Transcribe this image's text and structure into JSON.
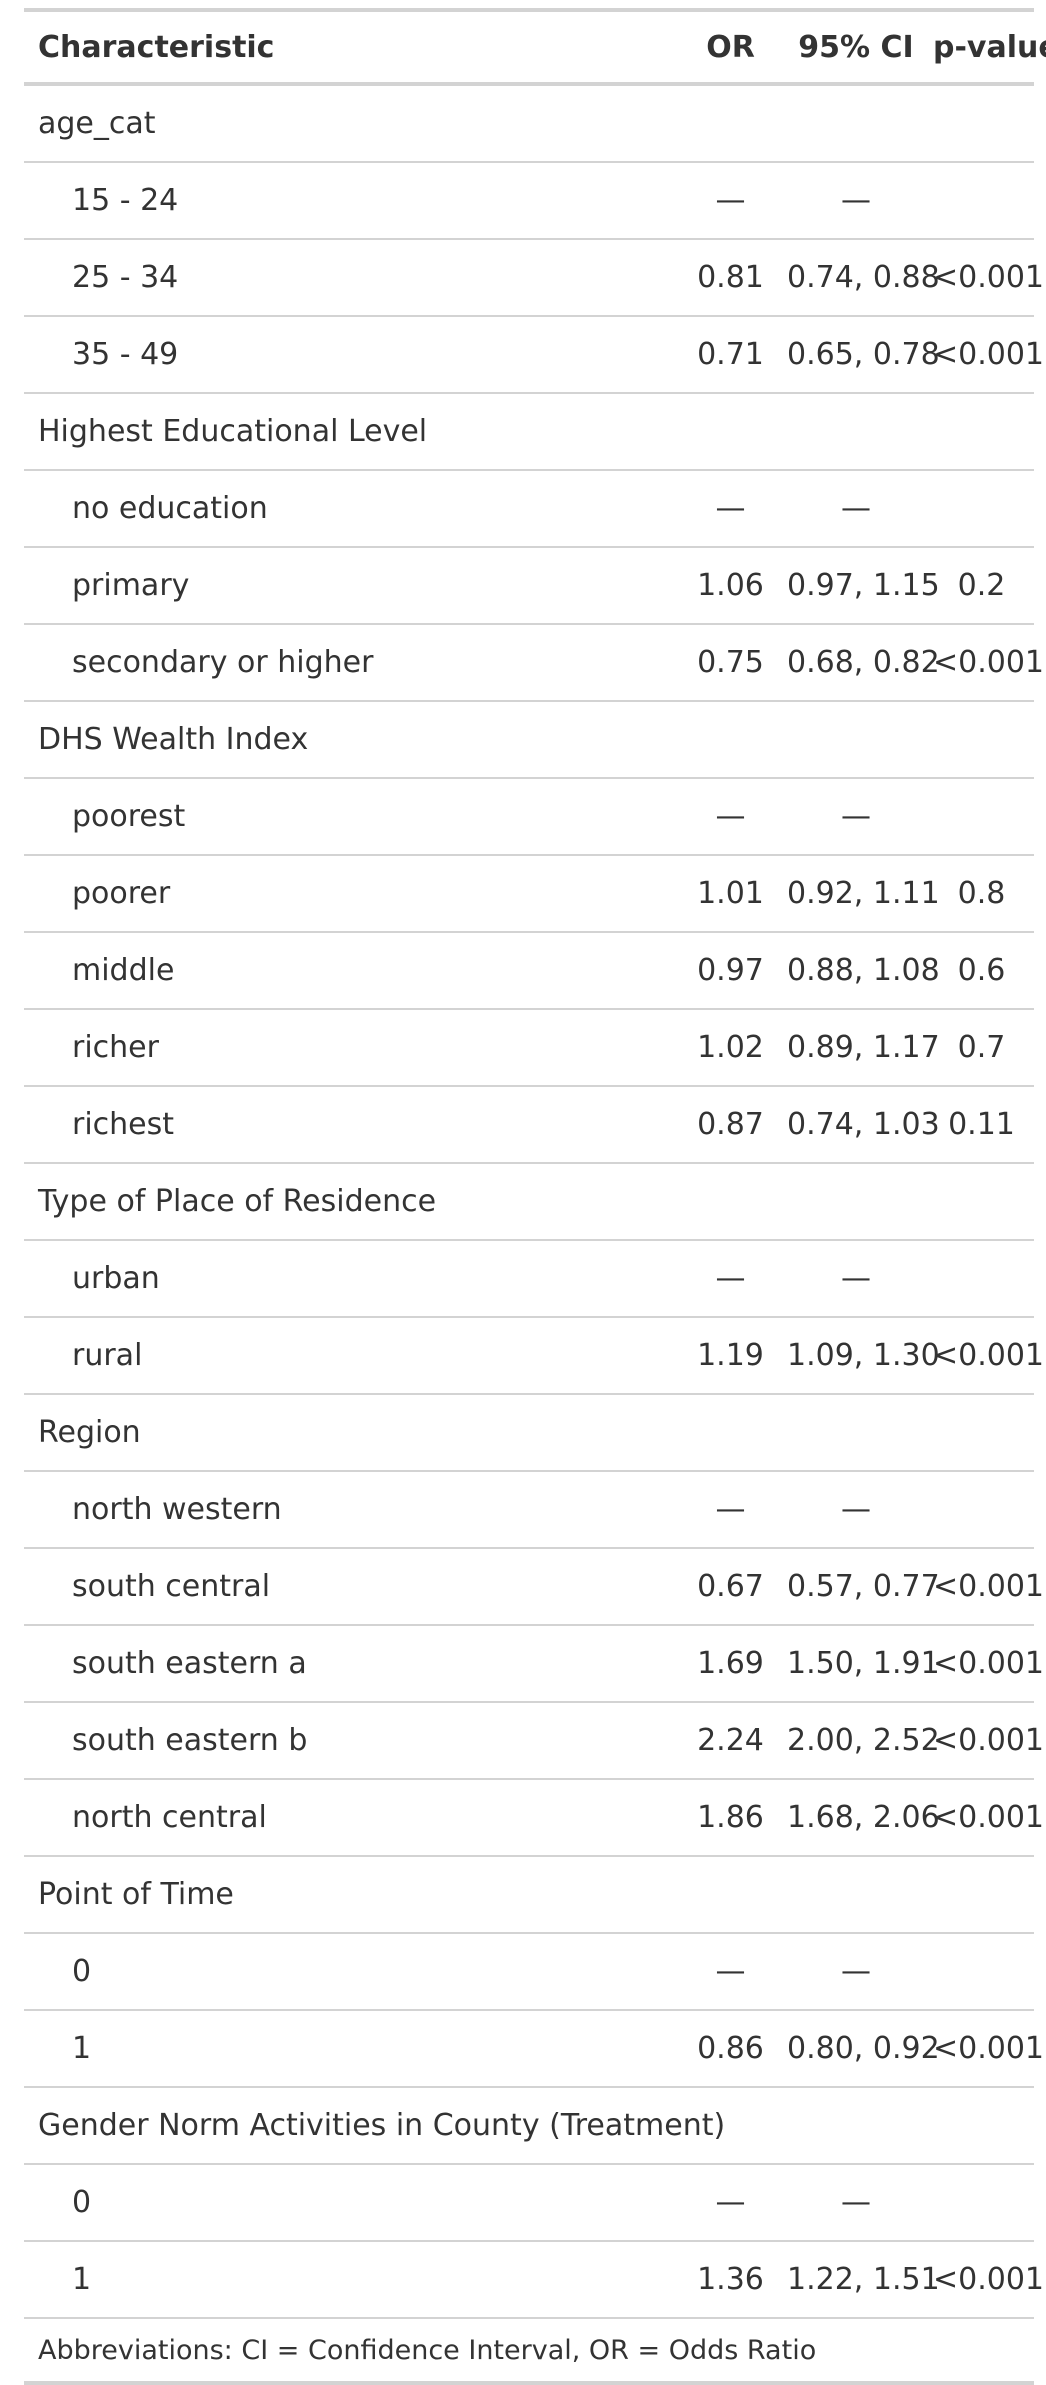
{
  "table": {
    "headers": {
      "characteristic": "Characteristic",
      "or": "OR",
      "ci": "95% CI",
      "p": "p-value"
    },
    "rows": [
      {
        "label": "age_cat",
        "group": true,
        "or": "",
        "ci": "",
        "p": ""
      },
      {
        "label": "15 - 24",
        "group": false,
        "or": "—",
        "ci": "—",
        "p": ""
      },
      {
        "label": "25 - 34",
        "group": false,
        "or": "0.81",
        "ci": "0.74, 0.88",
        "p": "<0.001"
      },
      {
        "label": "35 - 49",
        "group": false,
        "or": "0.71",
        "ci": "0.65, 0.78",
        "p": "<0.001"
      },
      {
        "label": "Highest Educational Level",
        "group": true,
        "or": "",
        "ci": "",
        "p": ""
      },
      {
        "label": "no education",
        "group": false,
        "or": "—",
        "ci": "—",
        "p": ""
      },
      {
        "label": "primary",
        "group": false,
        "or": "1.06",
        "ci": "0.97, 1.15",
        "p": "0.2"
      },
      {
        "label": "secondary or higher",
        "group": false,
        "or": "0.75",
        "ci": "0.68, 0.82",
        "p": "<0.001"
      },
      {
        "label": "DHS Wealth Index",
        "group": true,
        "or": "",
        "ci": "",
        "p": ""
      },
      {
        "label": "poorest",
        "group": false,
        "or": "—",
        "ci": "—",
        "p": ""
      },
      {
        "label": "poorer",
        "group": false,
        "or": "1.01",
        "ci": "0.92, 1.11",
        "p": "0.8"
      },
      {
        "label": "middle",
        "group": false,
        "or": "0.97",
        "ci": "0.88, 1.08",
        "p": "0.6"
      },
      {
        "label": "richer",
        "group": false,
        "or": "1.02",
        "ci": "0.89, 1.17",
        "p": "0.7"
      },
      {
        "label": "richest",
        "group": false,
        "or": "0.87",
        "ci": "0.74, 1.03",
        "p": "0.11"
      },
      {
        "label": "Type of Place of Residence",
        "group": true,
        "or": "",
        "ci": "",
        "p": ""
      },
      {
        "label": "urban",
        "group": false,
        "or": "—",
        "ci": "—",
        "p": ""
      },
      {
        "label": "rural",
        "group": false,
        "or": "1.19",
        "ci": "1.09, 1.30",
        "p": "<0.001"
      },
      {
        "label": "Region",
        "group": true,
        "or": "",
        "ci": "",
        "p": ""
      },
      {
        "label": "north western",
        "group": false,
        "or": "—",
        "ci": "—",
        "p": ""
      },
      {
        "label": "south central",
        "group": false,
        "or": "0.67",
        "ci": "0.57, 0.77",
        "p": "<0.001"
      },
      {
        "label": "south eastern a",
        "group": false,
        "or": "1.69",
        "ci": "1.50, 1.91",
        "p": "<0.001"
      },
      {
        "label": "south eastern b",
        "group": false,
        "or": "2.24",
        "ci": "2.00, 2.52",
        "p": "<0.001"
      },
      {
        "label": "north central",
        "group": false,
        "or": "1.86",
        "ci": "1.68, 2.06",
        "p": "<0.001"
      },
      {
        "label": "Point of Time",
        "group": true,
        "or": "",
        "ci": "",
        "p": ""
      },
      {
        "label": "0",
        "group": false,
        "or": "—",
        "ci": "—",
        "p": ""
      },
      {
        "label": "1",
        "group": false,
        "or": "0.86",
        "ci": "0.80, 0.92",
        "p": "<0.001"
      },
      {
        "label": "Gender Norm Activities in County (Treatment)",
        "group": true,
        "or": "",
        "ci": "",
        "p": ""
      },
      {
        "label": "0",
        "group": false,
        "or": "—",
        "ci": "—",
        "p": ""
      },
      {
        "label": "1",
        "group": false,
        "or": "1.36",
        "ci": "1.22, 1.51",
        "p": "<0.001"
      }
    ],
    "footnote": "Abbreviations: CI = Confidence Interval, OR = Odds Ratio"
  },
  "colors": {
    "text": "#333333",
    "rule": "#d3d3d3",
    "background": "#ffffff"
  }
}
